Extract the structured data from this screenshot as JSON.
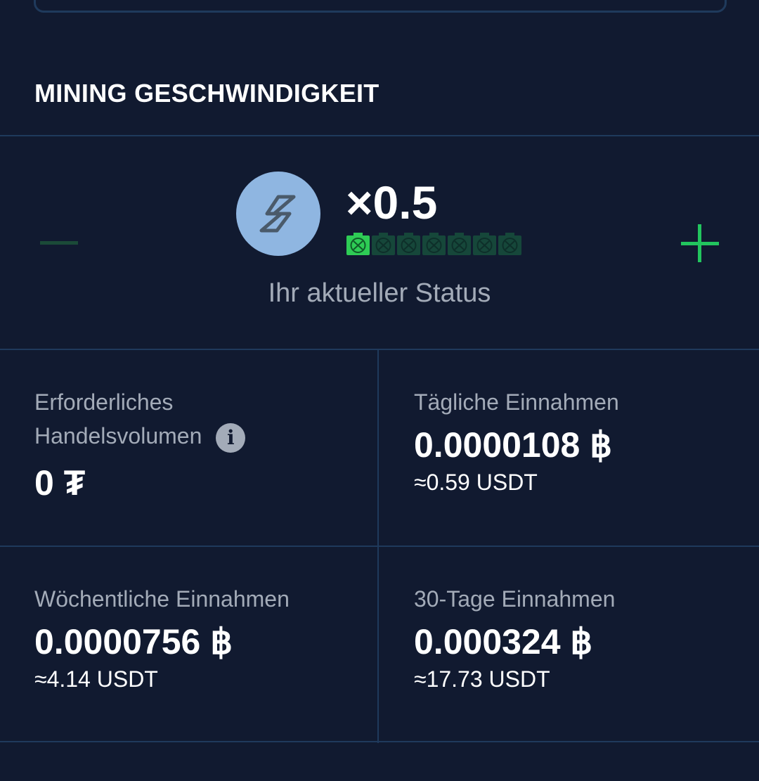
{
  "section": {
    "title": "MINING GESCHWINDIGKEIT"
  },
  "speed": {
    "multiplier": "×0.5",
    "status_label": "Ihr aktueller Status",
    "miner_level": 1,
    "miner_total": 7,
    "icon": "lightning-icon",
    "colors": {
      "accent": "#22c55e",
      "inactive": "#1b4a38",
      "circle": "#8fb6e1"
    }
  },
  "stats": {
    "volume": {
      "label": "Erforderliches Handelsvolumen",
      "value": "0 ₮"
    },
    "daily": {
      "label": "Tägliche Einnahmen",
      "value": "0.0000108 ฿",
      "approx": "≈0.59 USDT"
    },
    "weekly": {
      "label": "Wöchentliche Einnahmen",
      "value": "0.0000756 ฿",
      "approx": "≈4.14 USDT"
    },
    "monthly": {
      "label": "30-Tage Einnahmen",
      "value": "0.000324 ฿",
      "approx": "≈17.73 USDT"
    }
  }
}
